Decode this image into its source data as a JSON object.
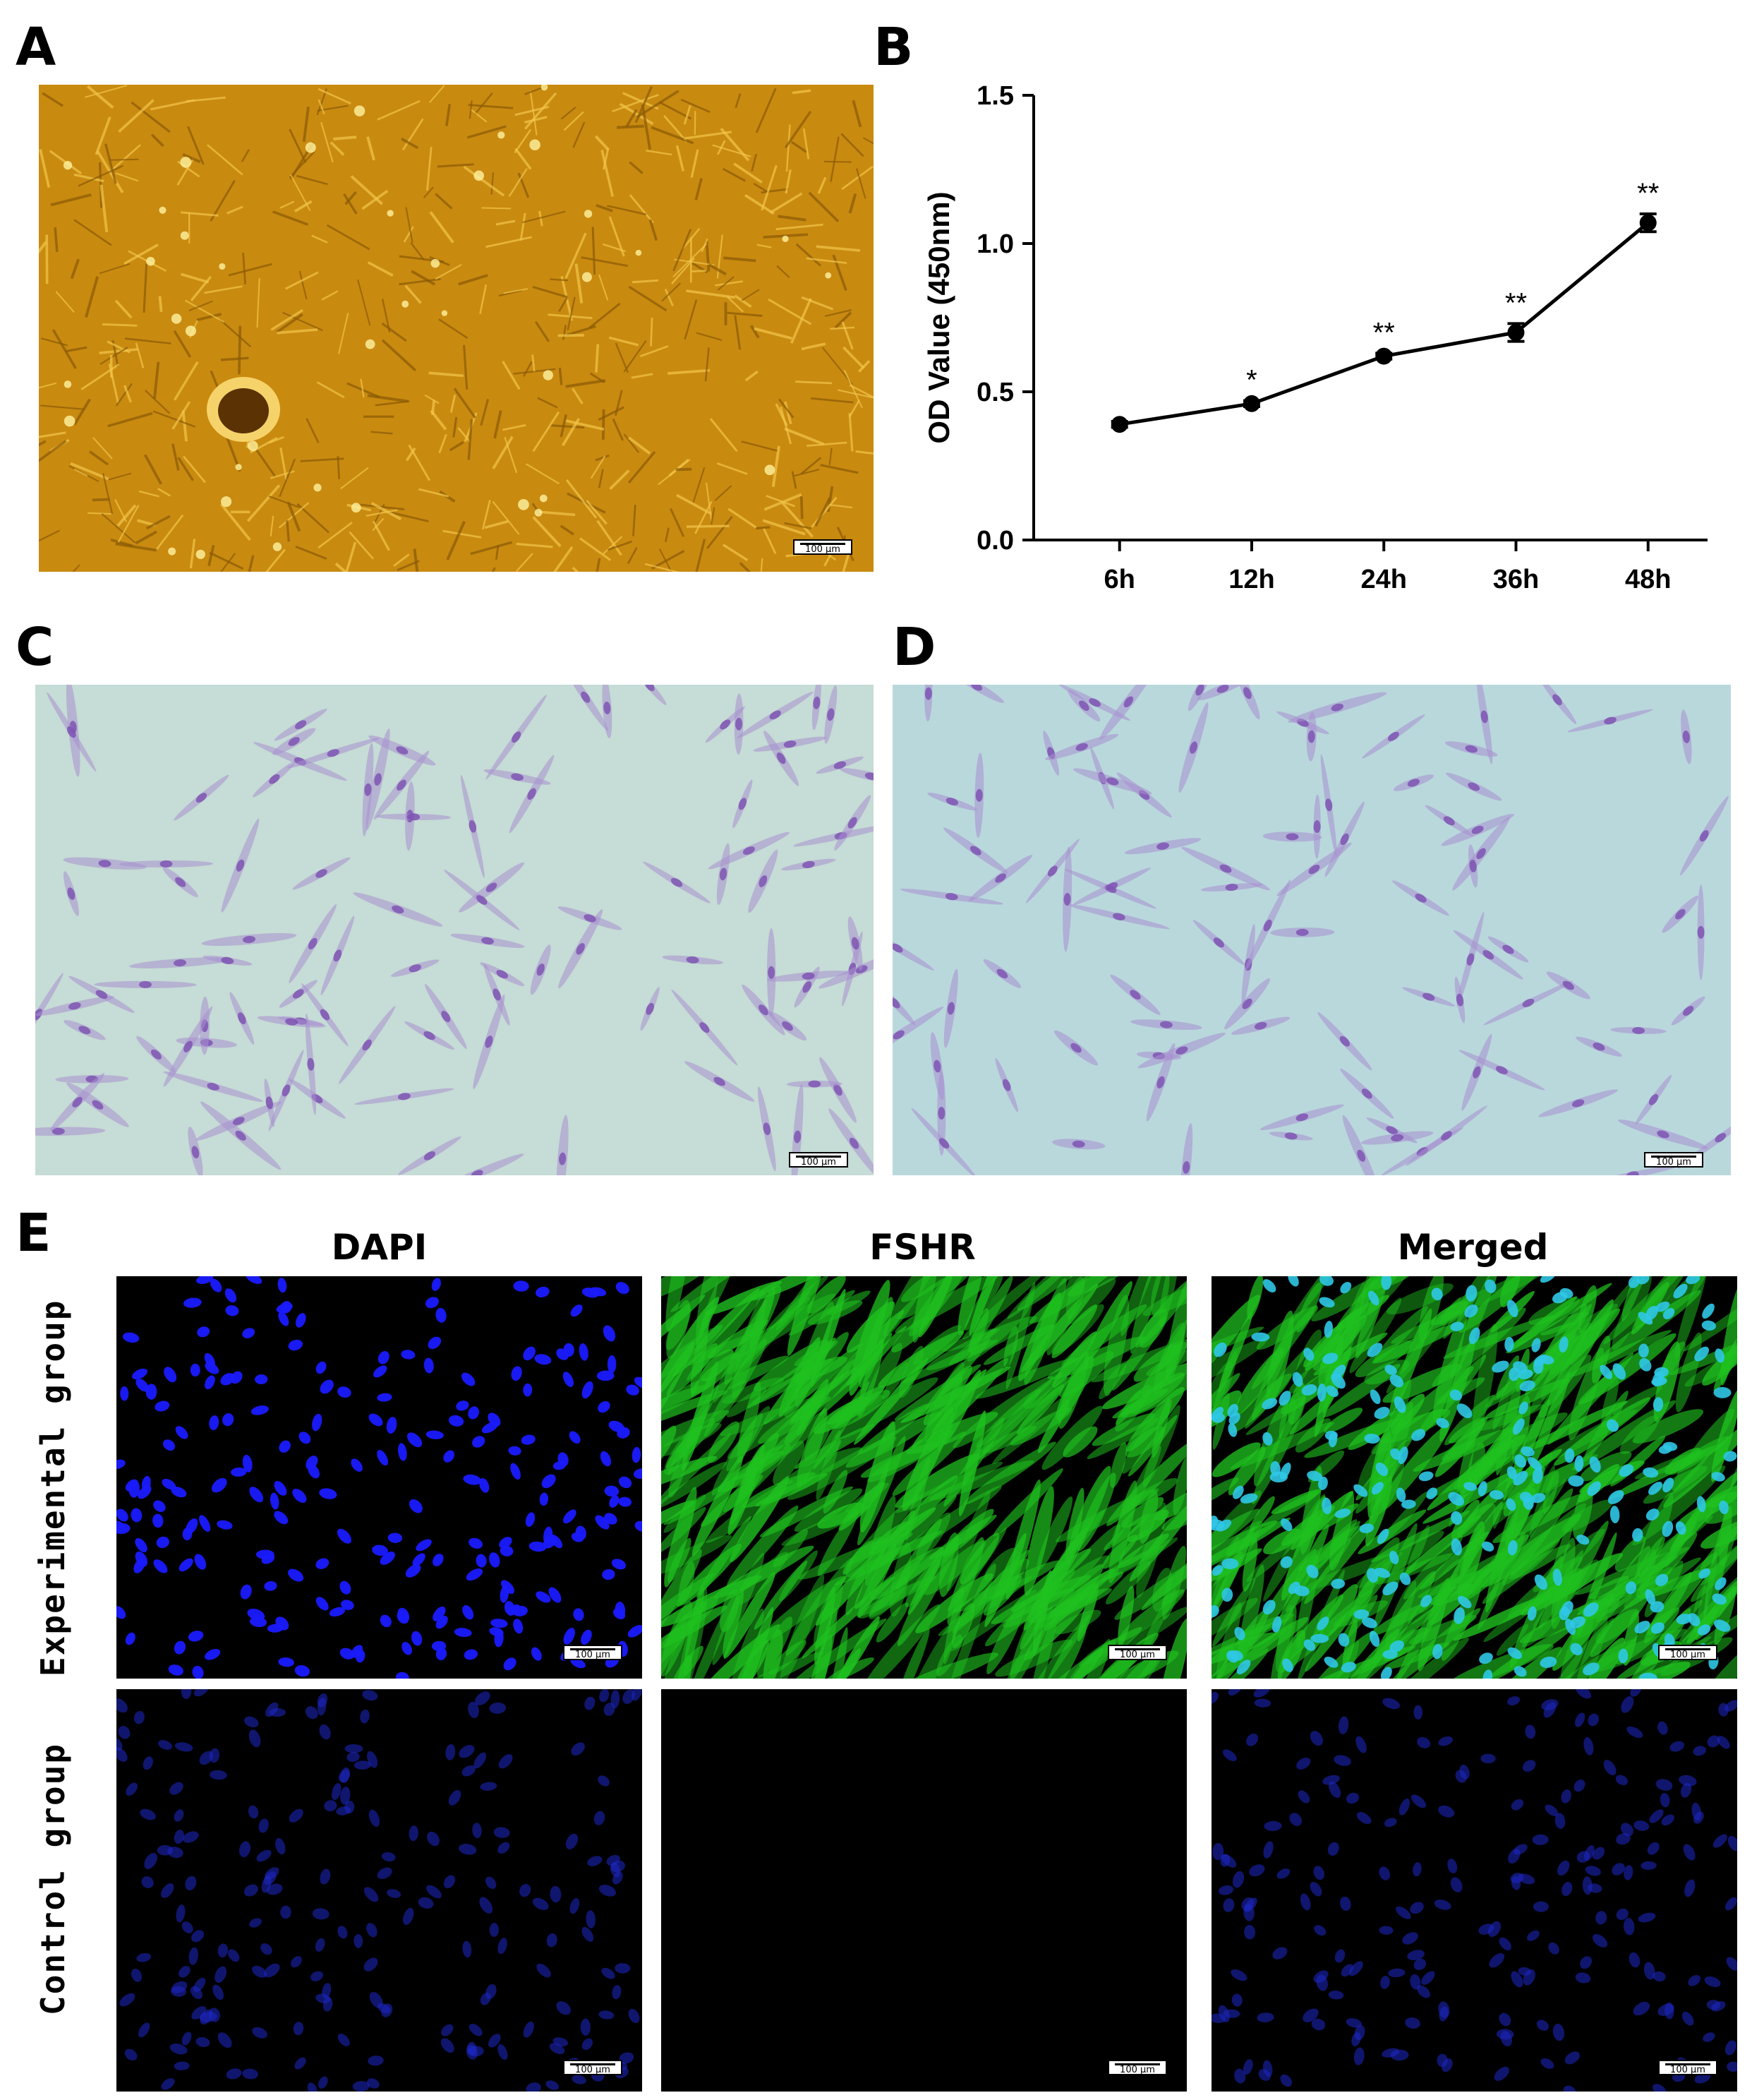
{
  "panels": {
    "a": {
      "letter": "A",
      "scale_label": "100 µm"
    },
    "b": {
      "letter": "B"
    },
    "c": {
      "letter": "C",
      "scale_label": "100 µm"
    },
    "d": {
      "letter": "D",
      "scale_label": "100 µm"
    },
    "e": {
      "letter": "E",
      "columns": [
        "DAPI",
        "FSHR",
        "Merged"
      ],
      "rows": [
        "Experimental group",
        "Control group"
      ],
      "scale_label": "100 µm"
    }
  },
  "colors": {
    "brightfield": "#c98a10",
    "hematoxylin_bg": "#c6dcd6",
    "hematoxylin_bg_d": "#b9d8dc",
    "dapi": "#1a1aff",
    "fshr": "#1fc11f",
    "merged_nuclei": "#2fc8e6"
  },
  "chart_data": {
    "type": "line",
    "categories": [
      "6h",
      "12h",
      "24h",
      "36h",
      "48h"
    ],
    "values": [
      0.39,
      0.46,
      0.62,
      0.7,
      1.07
    ],
    "errors": [
      0.01,
      0.01,
      0.01,
      0.03,
      0.03
    ],
    "significance": [
      "",
      "*",
      "**",
      "**",
      "**"
    ],
    "ylabel": "OD Value (450nm)",
    "ylim": [
      0,
      1.5
    ],
    "yticks": [
      "0.0",
      "0.5",
      "1.0",
      "1.5"
    ],
    "grid": false,
    "legend": "none"
  }
}
